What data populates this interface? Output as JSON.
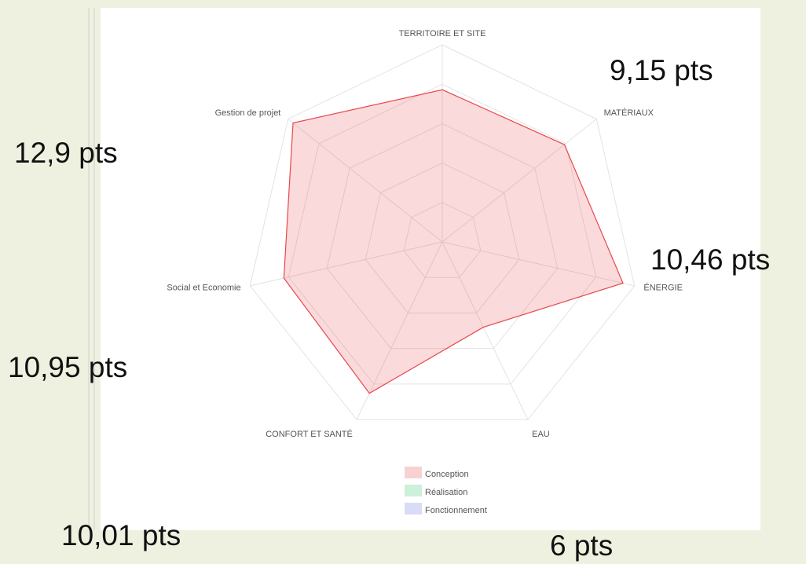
{
  "chart_data": {
    "type": "radar",
    "categories": [
      "TERRITOIRE ET SITE",
      "MATÉRIAUX",
      "ÉNERGIE",
      "EAU",
      "CONFORT ET SANTÉ",
      "Social et Economie",
      "Gestion de projet"
    ],
    "series": [
      {
        "name": "Conception",
        "color": "#e8474a",
        "values": [
          3.86,
          3.96,
          4.7,
          2.4,
          4.26,
          4.12,
          4.84
        ]
      },
      {
        "name": "Réalisation",
        "color": "#36c46b",
        "values": [
          null,
          null,
          null,
          null,
          null,
          null,
          null
        ]
      },
      {
        "name": "Fonctionnement",
        "color": "#6b6fe0",
        "values": [
          null,
          null,
          null,
          null,
          null,
          null,
          null
        ]
      }
    ],
    "rlim": [
      0,
      5
    ],
    "rticks": [
      1,
      2,
      3,
      4,
      5
    ],
    "grid": true,
    "annotations": [
      "9,15 pts",
      "12,9 pts",
      "10,46 pts",
      "10,95 pts",
      "10,01 pts",
      "6 pts"
    ]
  }
}
